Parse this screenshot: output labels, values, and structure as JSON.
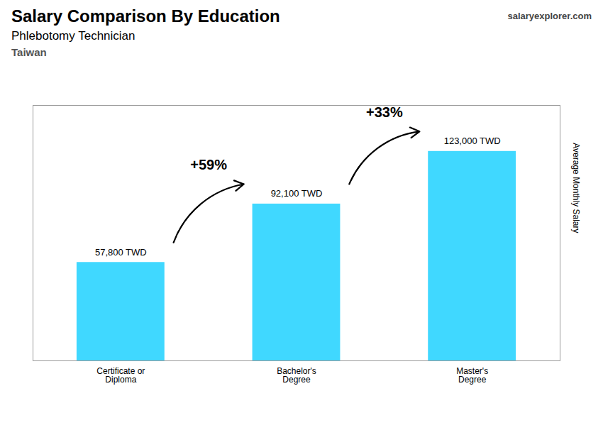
{
  "chart_data": {
    "type": "bar",
    "title": "Salary Comparison By Education",
    "subtitle": "Phlebotomy Technician",
    "location": "Taiwan",
    "source": "salaryexplorer.com",
    "ylabel": "Average Monthly Salary",
    "categories": [
      "Certificate or\nDiploma",
      "Bachelor's\nDegree",
      "Master's\nDegree"
    ],
    "values": [
      57800,
      92100,
      123000
    ],
    "value_labels": [
      "57,800 TWD",
      "92,100 TWD",
      "123,000 TWD"
    ],
    "data_labels": true,
    "annotations": [
      "+59%",
      "+33%"
    ],
    "color": "#40D8FF",
    "ylim": [
      0,
      150000
    ],
    "grid": false,
    "tick_labels": "x"
  }
}
